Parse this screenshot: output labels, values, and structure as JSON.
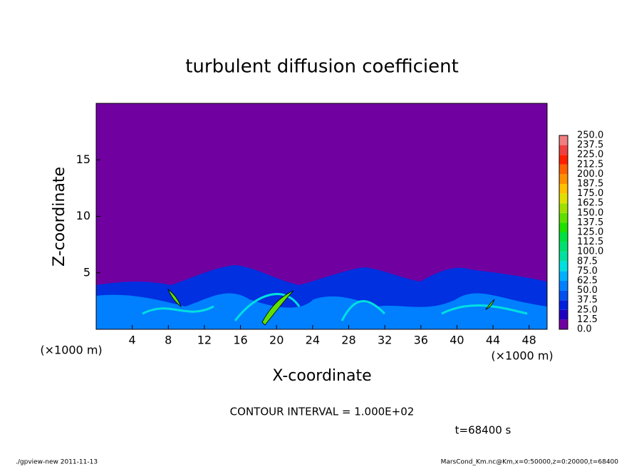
{
  "chart_data": {
    "type": "contour",
    "title": "turbulent diffusion coefficient",
    "xlabel": "X-coordinate",
    "ylabel": "Z-coordinate",
    "xunit": "(×1000 m)",
    "xlim": [
      0,
      50
    ],
    "ylim": [
      0,
      20
    ],
    "xticks": [
      4,
      8,
      12,
      16,
      20,
      24,
      28,
      32,
      36,
      40,
      44,
      48
    ],
    "yticks": [
      5,
      10,
      15
    ],
    "levels": [
      {
        "value": 0,
        "label": "0.0"
      },
      12.5,
      25,
      37.5,
      50,
      62.5,
      75,
      87.5,
      100,
      112.5,
      125,
      137.5,
      150,
      162.5,
      175,
      187.5,
      200,
      212.5,
      225,
      237.5,
      250
    ],
    "level_labels": [
      "0.0",
      "12.5",
      "25.0",
      "37.5",
      "50.0",
      "62.5",
      "75.0",
      "87.5",
      "100.0",
      "112.5",
      "125.0",
      "137.5",
      "150.0",
      "162.5",
      "175.0",
      "187.5",
      "200.0",
      "212.5",
      "225.0",
      "237.5",
      "250.0"
    ],
    "colors": [
      "#7000a0",
      "#2000c0",
      "#0020e0",
      "#0050f0",
      "#0080ff",
      "#00b0ff",
      "#00e0e0",
      "#00e0a0",
      "#00e070",
      "#00e040",
      "#20e000",
      "#60e000",
      "#a0e000",
      "#e0e000",
      "#ffc000",
      "#ff9000",
      "#ff6000",
      "#ff2000",
      "#f04040",
      "#f08080"
    ],
    "contour_interval": "CONTOUR INTERVAL = 1.000E+02",
    "time_label": "t=68400 s",
    "footer_left": "./gpview-new  2011-11-13",
    "footer_right": "MarsCond_Km.nc@Km,x=0:50000,z=0:20000,t=68400"
  }
}
